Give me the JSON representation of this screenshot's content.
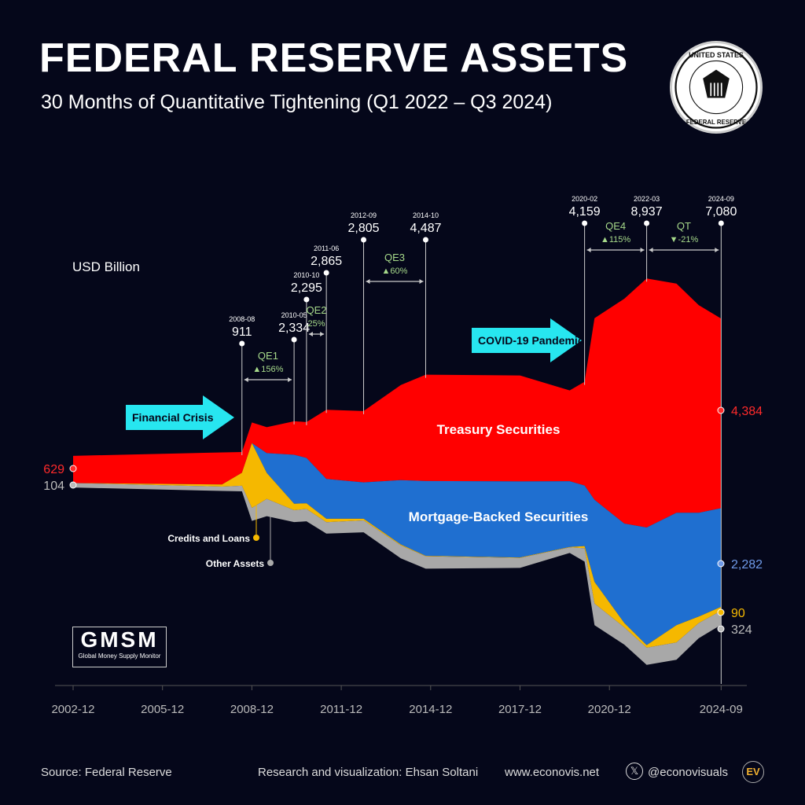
{
  "header": {
    "title": "FEDERAL RESERVE ASSETS",
    "subtitle": "30 Months of Quantitative Tightening (Q1 2022 – Q3 2024)",
    "seal_text": "UNITED STATES FEDERAL RESERVE SYSTEM"
  },
  "chart_data": {
    "type": "area",
    "layout": "streamgraph (centered stacked area)",
    "unit": "USD Billion",
    "x": [
      "2002-12",
      "2007-12",
      "2008-08",
      "2008-12",
      "2009-06",
      "2010-05",
      "2010-10",
      "2011-06",
      "2012-09",
      "2013-12",
      "2014-10",
      "2017-12",
      "2019-08",
      "2020-02",
      "2020-06",
      "2021-06",
      "2022-03",
      "2023-03",
      "2023-12",
      "2024-09"
    ],
    "series": [
      {
        "name": "Treasury Securities",
        "color": "#ff0000",
        "values": [
          629,
          740,
          480,
          476,
          600,
          777,
          830,
          1600,
          1650,
          2200,
          2460,
          2450,
          2100,
          2400,
          4200,
          5200,
          5760,
          5300,
          4800,
          4384
        ]
      },
      {
        "name": "Mortgage-Backed Securities",
        "color": "#1f6fd0",
        "values": [
          0,
          0,
          0,
          0,
          460,
          1130,
          1050,
          920,
          840,
          1490,
          1730,
          1760,
          1520,
          1400,
          1900,
          2300,
          2720,
          2600,
          2400,
          2282
        ]
      },
      {
        "name": "Credits and Loans",
        "color": "#f5b800",
        "values": [
          0,
          50,
          300,
          1500,
          600,
          150,
          130,
          80,
          40,
          20,
          10,
          10,
          10,
          50,
          500,
          100,
          60,
          400,
          150,
          90
        ]
      },
      {
        "name": "Other Assets",
        "color": "#a8a8a8",
        "values": [
          104,
          100,
          131,
          300,
          400,
          277,
          285,
          265,
          275,
          300,
          287,
          230,
          130,
          309,
          500,
          400,
          397,
          400,
          350,
          324
        ]
      }
    ],
    "x_ticks": [
      "2002-12",
      "2005-12",
      "2008-12",
      "2011-12",
      "2014-12",
      "2017-12",
      "2020-12",
      "2024-09"
    ],
    "start_labels": {
      "treasury": "629",
      "other": "104"
    },
    "end_labels": {
      "treasury": "4,384",
      "mbs": "2,282",
      "credits": "90",
      "other": "324"
    },
    "events": [
      {
        "date": "2008-08",
        "value": "911"
      },
      {
        "date": "2010-05",
        "value": "2,334"
      },
      {
        "date": "2010-10",
        "value": "2,295"
      },
      {
        "date": "2011-06",
        "value": "2,865"
      },
      {
        "date": "2012-09",
        "value": "2,805"
      },
      {
        "date": "2014-10",
        "value": "4,487"
      },
      {
        "date": "2020-02",
        "value": "4,159"
      },
      {
        "date": "2022-03",
        "value": "8,937"
      },
      {
        "date": "2024-09",
        "value": "7,080"
      }
    ],
    "periods": [
      {
        "name": "QE1",
        "from": "2008-08",
        "to": "2010-05",
        "change": "▲156%"
      },
      {
        "name": "QE2",
        "from": "2010-10",
        "to": "2011-06",
        "change": "25%"
      },
      {
        "name": "QE3",
        "from": "2012-09",
        "to": "2014-10",
        "change": "▲60%"
      },
      {
        "name": "QE4",
        "from": "2020-02",
        "to": "2022-03",
        "change": "▲115%"
      },
      {
        "name": "QT",
        "from": "2022-03",
        "to": "2024-09",
        "change": "▼-21%"
      }
    ],
    "annotations": [
      "Financial Crisis",
      "COVID-19 Pandemic"
    ]
  },
  "logo": {
    "name": "GMSM",
    "tagline": "Global Money Supply Monitor"
  },
  "footer": {
    "source": "Source: Federal Reserve",
    "credit": "Research and visualization: Ehsan Soltani",
    "website": "www.econovis.net",
    "handle": "@econovisuals",
    "brand": "EV"
  }
}
